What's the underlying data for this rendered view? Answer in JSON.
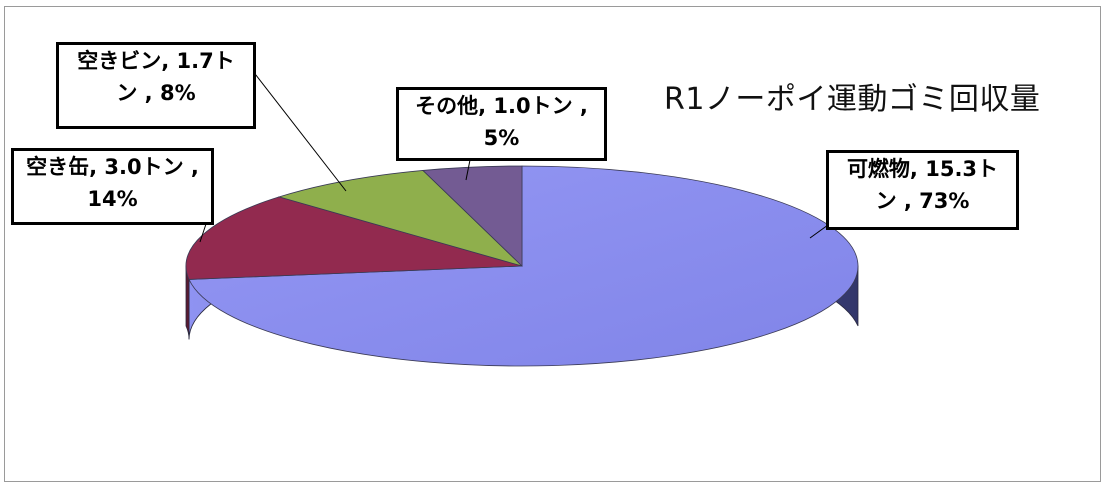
{
  "chart_data": {
    "type": "pie",
    "title": "R1ノーポイ運動ゴミ回収量",
    "unit": "トン",
    "slices": [
      {
        "name": "可燃物",
        "value": 15.3,
        "percent": 73,
        "color": "#8b8ef0",
        "side_dark": "#383c70",
        "side_light": "#8e92ee",
        "label_line1": "可燃物, 15.3ト",
        "label_line2": "ン , 73%"
      },
      {
        "name": "空き缶",
        "value": 3.0,
        "percent": 14,
        "color": "#922a4f",
        "side_dark": "#5a1a31",
        "side_light": "#922a4f",
        "label_line1": "空き缶, 3.0トン ,",
        "label_line2": "14%"
      },
      {
        "name": "空きビン",
        "value": 1.7,
        "percent": 8,
        "color": "#8faf4c",
        "side_dark": "#5b7030",
        "side_light": "#8faf4c",
        "label_line1": "空きビン, 1.7ト",
        "label_line2": "ン , 8%"
      },
      {
        "name": "その他",
        "value": 1.0,
        "percent": 5,
        "color": "#735b93",
        "side_dark": "#47385b",
        "side_light": "#735b93",
        "label_line1": "その他, 1.0トン ,",
        "label_line2": "5%"
      }
    ],
    "legend": "none",
    "style": "3d"
  }
}
